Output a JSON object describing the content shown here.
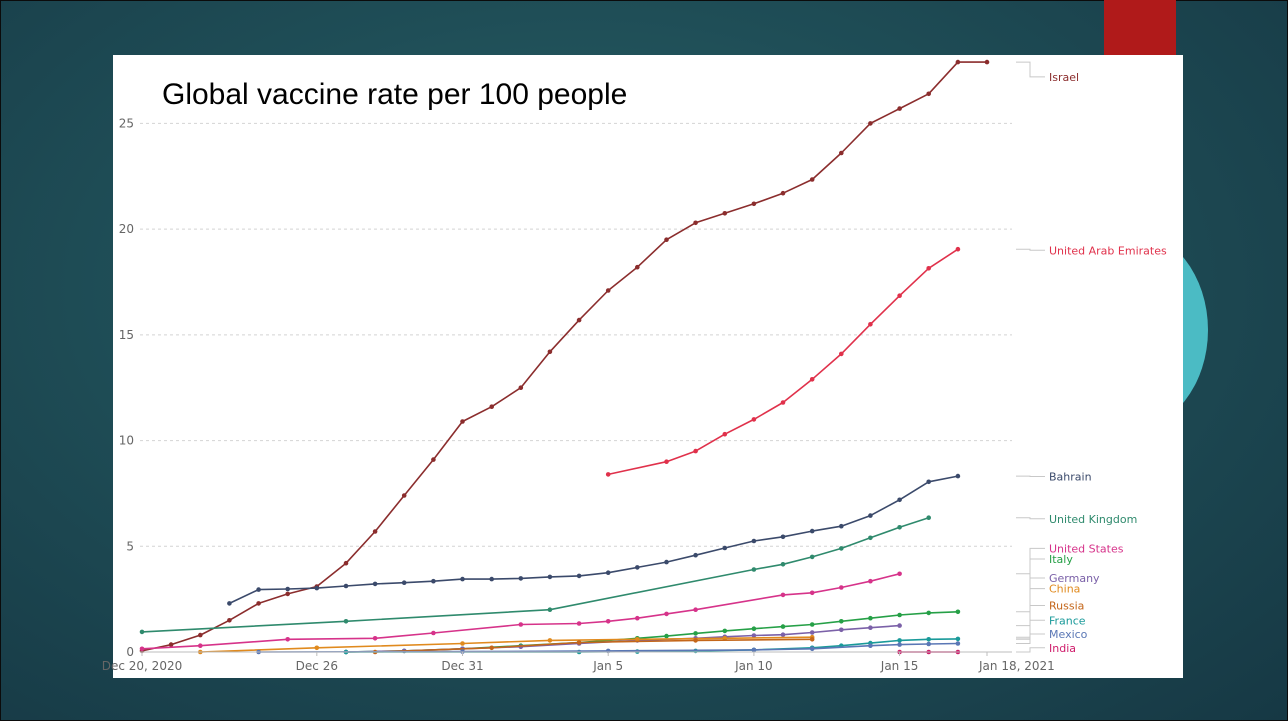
{
  "chart_data": {
    "type": "line",
    "title": "Global vaccine rate per 100 people",
    "xlabel": "",
    "ylabel": "",
    "x_range": [
      "2020-12-20",
      "2021-01-18"
    ],
    "ylim": [
      0,
      28
    ],
    "y_ticks": [
      {
        "label": "0",
        "value": 0
      },
      {
        "label": "5",
        "value": 5
      },
      {
        "label": "10",
        "value": 10
      },
      {
        "label": "15",
        "value": 15
      },
      {
        "label": "20",
        "value": 20
      },
      {
        "label": "25",
        "value": 25
      }
    ],
    "x_ticks": [
      {
        "label": "Dec 20, 2020",
        "date": "2020-12-20"
      },
      {
        "label": "Dec 26",
        "date": "2020-12-26"
      },
      {
        "label": "Dec 31",
        "date": "2020-12-31"
      },
      {
        "label": "Jan 5",
        "date": "2021-01-05"
      },
      {
        "label": "Jan 10",
        "date": "2021-01-10"
      },
      {
        "label": "Jan 15",
        "date": "2021-01-15"
      },
      {
        "label": "Jan 18, 2021",
        "date": "2021-01-18"
      }
    ],
    "grid": true,
    "legend_position": "right",
    "series": [
      {
        "name": "Israel",
        "color": "#8b2d2d",
        "label_y": 27.2,
        "points": [
          [
            "2020-12-20",
            0.05
          ],
          [
            "2020-12-21",
            0.35
          ],
          [
            "2020-12-22",
            0.8
          ],
          [
            "2020-12-23",
            1.5
          ],
          [
            "2020-12-24",
            2.3
          ],
          [
            "2020-12-25",
            2.75
          ],
          [
            "2020-12-26",
            3.1
          ],
          [
            "2020-12-27",
            4.2
          ],
          [
            "2020-12-28",
            5.7
          ],
          [
            "2020-12-29",
            7.4
          ],
          [
            "2020-12-30",
            9.1
          ],
          [
            "2020-12-31",
            10.9
          ],
          [
            "2021-01-01",
            11.6
          ],
          [
            "2021-01-02",
            12.5
          ],
          [
            "2021-01-03",
            14.2
          ],
          [
            "2021-01-04",
            15.7
          ],
          [
            "2021-01-05",
            17.1
          ],
          [
            "2021-01-06",
            18.2
          ],
          [
            "2021-01-07",
            19.5
          ],
          [
            "2021-01-08",
            20.3
          ],
          [
            "2021-01-09",
            20.75
          ],
          [
            "2021-01-10",
            21.2
          ],
          [
            "2021-01-11",
            21.7
          ],
          [
            "2021-01-12",
            22.35
          ],
          [
            "2021-01-13",
            23.6
          ],
          [
            "2021-01-14",
            25.0
          ],
          [
            "2021-01-15",
            25.7
          ],
          [
            "2021-01-16",
            26.4
          ],
          [
            "2021-01-17",
            27.9
          ],
          [
            "2021-01-18",
            27.9
          ]
        ]
      },
      {
        "name": "United Arab Emirates",
        "color": "#e0314b",
        "label_y": 19.0,
        "points": [
          [
            "2021-01-05",
            8.4
          ],
          [
            "2021-01-07",
            9.0
          ],
          [
            "2021-01-08",
            9.5
          ],
          [
            "2021-01-09",
            10.3
          ],
          [
            "2021-01-10",
            11.0
          ],
          [
            "2021-01-11",
            11.8
          ],
          [
            "2021-01-12",
            12.9
          ],
          [
            "2021-01-13",
            14.1
          ],
          [
            "2021-01-14",
            15.5
          ],
          [
            "2021-01-15",
            16.85
          ],
          [
            "2021-01-16",
            18.15
          ],
          [
            "2021-01-17",
            19.05
          ]
        ]
      },
      {
        "name": "Bahrain",
        "color": "#3b4a6b",
        "label_y": 8.3,
        "points": [
          [
            "2020-12-23",
            2.3
          ],
          [
            "2020-12-24",
            2.95
          ],
          [
            "2020-12-25",
            2.98
          ],
          [
            "2020-12-26",
            3.02
          ],
          [
            "2020-12-27",
            3.12
          ],
          [
            "2020-12-28",
            3.22
          ],
          [
            "2020-12-29",
            3.28
          ],
          [
            "2020-12-30",
            3.35
          ],
          [
            "2020-12-31",
            3.45
          ],
          [
            "2021-01-01",
            3.45
          ],
          [
            "2021-01-02",
            3.48
          ],
          [
            "2021-01-03",
            3.55
          ],
          [
            "2021-01-04",
            3.6
          ],
          [
            "2021-01-05",
            3.75
          ],
          [
            "2021-01-06",
            4.0
          ],
          [
            "2021-01-07",
            4.25
          ],
          [
            "2021-01-08",
            4.58
          ],
          [
            "2021-01-09",
            4.92
          ],
          [
            "2021-01-10",
            5.25
          ],
          [
            "2021-01-11",
            5.45
          ],
          [
            "2021-01-12",
            5.72
          ],
          [
            "2021-01-13",
            5.95
          ],
          [
            "2021-01-14",
            6.45
          ],
          [
            "2021-01-15",
            7.2
          ],
          [
            "2021-01-16",
            8.05
          ],
          [
            "2021-01-17",
            8.32
          ]
        ]
      },
      {
        "name": "United Kingdom",
        "color": "#2f8a6d",
        "label_y": 6.3,
        "points": [
          [
            "2020-12-20",
            0.95
          ],
          [
            "2020-12-27",
            1.45
          ],
          [
            "2021-01-03",
            2.0
          ],
          [
            "2021-01-10",
            3.9
          ],
          [
            "2021-01-11",
            4.15
          ],
          [
            "2021-01-12",
            4.5
          ],
          [
            "2021-01-13",
            4.9
          ],
          [
            "2021-01-14",
            5.4
          ],
          [
            "2021-01-15",
            5.9
          ],
          [
            "2021-01-16",
            6.35
          ]
        ]
      },
      {
        "name": "United States",
        "color": "#d6338a",
        "label_y": 4.9,
        "points": [
          [
            "2020-12-20",
            0.15
          ],
          [
            "2020-12-22",
            0.3
          ],
          [
            "2020-12-25",
            0.6
          ],
          [
            "2020-12-28",
            0.65
          ],
          [
            "2020-12-30",
            0.9
          ],
          [
            "2021-01-02",
            1.3
          ],
          [
            "2021-01-04",
            1.35
          ],
          [
            "2021-01-05",
            1.45
          ],
          [
            "2021-01-06",
            1.6
          ],
          [
            "2021-01-07",
            1.8
          ],
          [
            "2021-01-08",
            2.0
          ],
          [
            "2021-01-11",
            2.7
          ],
          [
            "2021-01-12",
            2.8
          ],
          [
            "2021-01-13",
            3.05
          ],
          [
            "2021-01-14",
            3.35
          ],
          [
            "2021-01-15",
            3.7
          ]
        ]
      },
      {
        "name": "Italy",
        "color": "#26a047",
        "label_y": 4.4,
        "points": [
          [
            "2020-12-27",
            0.0
          ],
          [
            "2020-12-29",
            0.05
          ],
          [
            "2020-12-31",
            0.15
          ],
          [
            "2021-01-02",
            0.3
          ],
          [
            "2021-01-04",
            0.45
          ],
          [
            "2021-01-06",
            0.65
          ],
          [
            "2021-01-07",
            0.75
          ],
          [
            "2021-01-08",
            0.88
          ],
          [
            "2021-01-09",
            1.0
          ],
          [
            "2021-01-10",
            1.1
          ],
          [
            "2021-01-11",
            1.2
          ],
          [
            "2021-01-12",
            1.3
          ],
          [
            "2021-01-13",
            1.45
          ],
          [
            "2021-01-14",
            1.6
          ],
          [
            "2021-01-15",
            1.75
          ],
          [
            "2021-01-16",
            1.85
          ],
          [
            "2021-01-17",
            1.9
          ]
        ]
      },
      {
        "name": "Germany",
        "color": "#7b61a8",
        "label_y": 3.5,
        "points": [
          [
            "2020-12-27",
            0.0
          ],
          [
            "2020-12-29",
            0.05
          ],
          [
            "2020-12-31",
            0.15
          ],
          [
            "2021-01-02",
            0.25
          ],
          [
            "2021-01-04",
            0.4
          ],
          [
            "2021-01-06",
            0.55
          ],
          [
            "2021-01-08",
            0.65
          ],
          [
            "2021-01-09",
            0.72
          ],
          [
            "2021-01-10",
            0.78
          ],
          [
            "2021-01-11",
            0.82
          ],
          [
            "2021-01-12",
            0.92
          ],
          [
            "2021-01-13",
            1.05
          ],
          [
            "2021-01-14",
            1.15
          ],
          [
            "2021-01-15",
            1.25
          ]
        ]
      },
      {
        "name": "China",
        "color": "#e08a1e",
        "label_y": 3.0,
        "points": [
          [
            "2020-12-22",
            0.0
          ],
          [
            "2020-12-26",
            0.2
          ],
          [
            "2020-12-31",
            0.4
          ],
          [
            "2021-01-03",
            0.55
          ],
          [
            "2021-01-06",
            0.6
          ],
          [
            "2021-01-09",
            0.65
          ],
          [
            "2021-01-12",
            0.7
          ]
        ]
      },
      {
        "name": "Russia",
        "color": "#c4661a",
        "label_y": 2.2,
        "points": [
          [
            "2020-12-28",
            0.0
          ],
          [
            "2021-01-01",
            0.2
          ],
          [
            "2021-01-04",
            0.45
          ],
          [
            "2021-01-08",
            0.55
          ],
          [
            "2021-01-12",
            0.6
          ]
        ]
      },
      {
        "name": "France",
        "color": "#1a9a9a",
        "label_y": 1.5,
        "points": [
          [
            "2020-12-27",
            0.0
          ],
          [
            "2021-01-04",
            0.0
          ],
          [
            "2021-01-06",
            0.02
          ],
          [
            "2021-01-08",
            0.05
          ],
          [
            "2021-01-10",
            0.1
          ],
          [
            "2021-01-12",
            0.2
          ],
          [
            "2021-01-13",
            0.3
          ],
          [
            "2021-01-14",
            0.42
          ],
          [
            "2021-01-15",
            0.55
          ],
          [
            "2021-01-16",
            0.6
          ],
          [
            "2021-01-17",
            0.62
          ]
        ]
      },
      {
        "name": "Mexico",
        "color": "#5a77b5",
        "label_y": 0.85,
        "points": [
          [
            "2020-12-24",
            0.0
          ],
          [
            "2020-12-31",
            0.02
          ],
          [
            "2021-01-05",
            0.05
          ],
          [
            "2021-01-10",
            0.1
          ],
          [
            "2021-01-12",
            0.15
          ],
          [
            "2021-01-14",
            0.3
          ],
          [
            "2021-01-15",
            0.35
          ],
          [
            "2021-01-16",
            0.38
          ],
          [
            "2021-01-17",
            0.4
          ]
        ]
      },
      {
        "name": "India",
        "color": "#cf1d6b",
        "label_y": 0.2,
        "points": [
          [
            "2021-01-15",
            0.0
          ],
          [
            "2021-01-16",
            0.0
          ],
          [
            "2021-01-17",
            0.0
          ]
        ]
      }
    ]
  }
}
